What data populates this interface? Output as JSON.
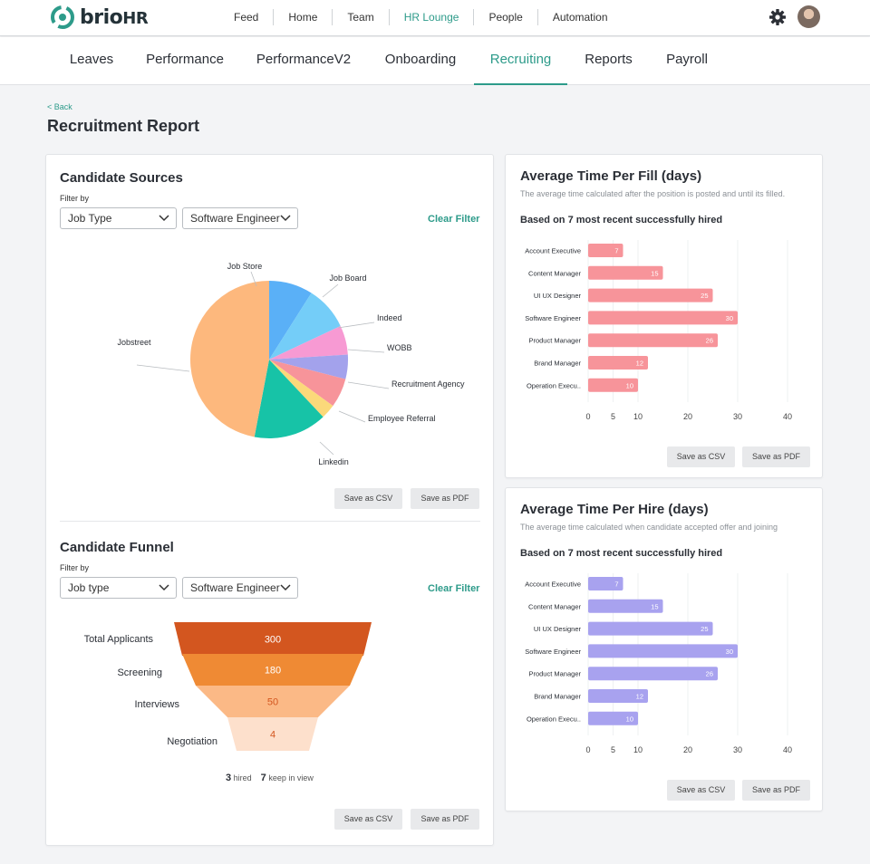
{
  "app": {
    "name": "brio",
    "suffix": "HR"
  },
  "topnav": [
    {
      "label": "Feed",
      "active": false
    },
    {
      "label": "Home",
      "active": false
    },
    {
      "label": "Team",
      "active": false
    },
    {
      "label": "HR Lounge",
      "active": true
    },
    {
      "label": "People",
      "active": false
    },
    {
      "label": "Automation",
      "active": false
    }
  ],
  "subnav": [
    {
      "label": "Leaves",
      "active": false
    },
    {
      "label": "Performance",
      "active": false
    },
    {
      "label": "PerformanceV2",
      "active": false
    },
    {
      "label": "Onboarding",
      "active": false
    },
    {
      "label": "Recruiting",
      "active": true
    },
    {
      "label": "Reports",
      "active": false
    },
    {
      "label": "Payroll",
      "active": false
    }
  ],
  "page": {
    "back_label": "< Back",
    "title": "Recruitment Report"
  },
  "colors": {
    "accent": "#2d9b8a",
    "fill_bar": "#f7949a",
    "hire_bar": "#a8a2ef"
  },
  "sources": {
    "title": "Candidate Sources",
    "filter_label": "Filter by",
    "filter_type": "Job Type",
    "filter_role": "Software Engineer",
    "clear": "Clear Filter",
    "csv": "Save as CSV",
    "pdf": "Save as PDF"
  },
  "funnel": {
    "title": "Candidate Funnel",
    "filter_label": "Filter by",
    "filter_type": "Job type",
    "filter_role": "Software Engineer",
    "clear": "Clear Filter",
    "hired_count": "3",
    "hired_label": "hired",
    "kiv_count": "7",
    "kiv_label": "keep in view",
    "csv": "Save as CSV",
    "pdf": "Save as PDF"
  },
  "fill": {
    "title": "Average Time Per Fill (days)",
    "subtitle": "The average time calculated after the position is posted and until its filled.",
    "based": "Based on 7 most recent successfully hired",
    "csv": "Save as CSV",
    "pdf": "Save as PDF"
  },
  "hire": {
    "title": "Average Time Per Hire (days)",
    "subtitle": "The average time calculated when candidate accepted offer and joining",
    "based": "Based on 7 most recent successfully hired",
    "csv": "Save as CSV",
    "pdf": "Save as PDF"
  },
  "chart_data": [
    {
      "type": "pie",
      "name": "candidate-sources",
      "labels": [
        "Job Store",
        "Job Board",
        "Indeed",
        "WOBB",
        "Recruitment Agency",
        "Employee Referral",
        "Linkedin",
        "Jobstreet"
      ],
      "values": [
        9,
        9,
        6,
        5,
        6,
        3,
        15,
        47
      ],
      "colors": [
        "#5ab0f7",
        "#74cdf8",
        "#f79ad3",
        "#a3a2ec",
        "#f7949a",
        "#fbd97a",
        "#17c3a7",
        "#fdb87d"
      ]
    },
    {
      "type": "funnel",
      "name": "candidate-funnel",
      "categories": [
        "Total Applicants",
        "Screening",
        "Interviews",
        "Negotiation"
      ],
      "values": [
        300,
        180,
        50,
        4
      ],
      "colors": [
        "#d3561f",
        "#ef8a34",
        "#fbb986",
        "#fde0cc"
      ],
      "text_colors": [
        "#ffffff",
        "#ffffff",
        "#d3561f",
        "#d3561f"
      ]
    },
    {
      "type": "bar",
      "orientation": "horizontal",
      "name": "time-per-fill",
      "categories": [
        "Account Executive",
        "Content Manager",
        "UI UX Designer",
        "Software Engineer",
        "Product Manager",
        "Brand Manager",
        "Operation Execu.."
      ],
      "values": [
        7,
        15,
        25,
        30,
        26,
        12,
        10
      ],
      "xticks": [
        0,
        5,
        10,
        20,
        30,
        40
      ]
    },
    {
      "type": "bar",
      "orientation": "horizontal",
      "name": "time-per-hire",
      "categories": [
        "Account Executive",
        "Content Manager",
        "UI UX Designer",
        "Software Engineer",
        "Product Manager",
        "Brand Manager",
        "Operation Execu.."
      ],
      "values": [
        7,
        15,
        25,
        30,
        26,
        12,
        10
      ],
      "xticks": [
        0,
        5,
        10,
        20,
        30,
        40
      ]
    }
  ]
}
